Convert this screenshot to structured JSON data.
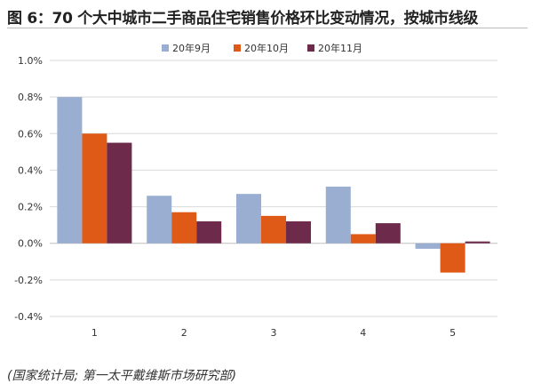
{
  "header": {
    "title": "图 6：70 个大中城市二手商品住宅销售价格环比变动情况，按城市线级",
    "source": "(国家统计局; 第一太平戴维斯市场研究部)"
  },
  "colors": {
    "series": [
      "#9aaed2",
      "#e05a17",
      "#6d2a4b"
    ],
    "grid": "#d9d9d9",
    "axis": "#bfbfbf"
  },
  "chart_data": {
    "type": "bar",
    "categories": [
      "1",
      "2",
      "3",
      "4",
      "5"
    ],
    "series": [
      {
        "name": "20年9月",
        "values": [
          0.8,
          0.26,
          0.27,
          0.31,
          -0.03
        ]
      },
      {
        "name": "20年10月",
        "values": [
          0.6,
          0.17,
          0.15,
          0.05,
          -0.16
        ]
      },
      {
        "name": "20年11月",
        "values": [
          0.55,
          0.12,
          0.12,
          0.11,
          0.01
        ]
      }
    ],
    "ylim": [
      -0.4,
      1.0
    ],
    "yticks": [
      1.0,
      0.8,
      0.6,
      0.4,
      0.2,
      0.0,
      -0.2,
      -0.4
    ],
    "ytick_labels": [
      "1.0%",
      "0.8%",
      "0.6%",
      "0.4%",
      "0.2%",
      "0.0%",
      "-0.2%",
      "-0.4%"
    ],
    "grid": true,
    "legend_position": "top-center"
  }
}
